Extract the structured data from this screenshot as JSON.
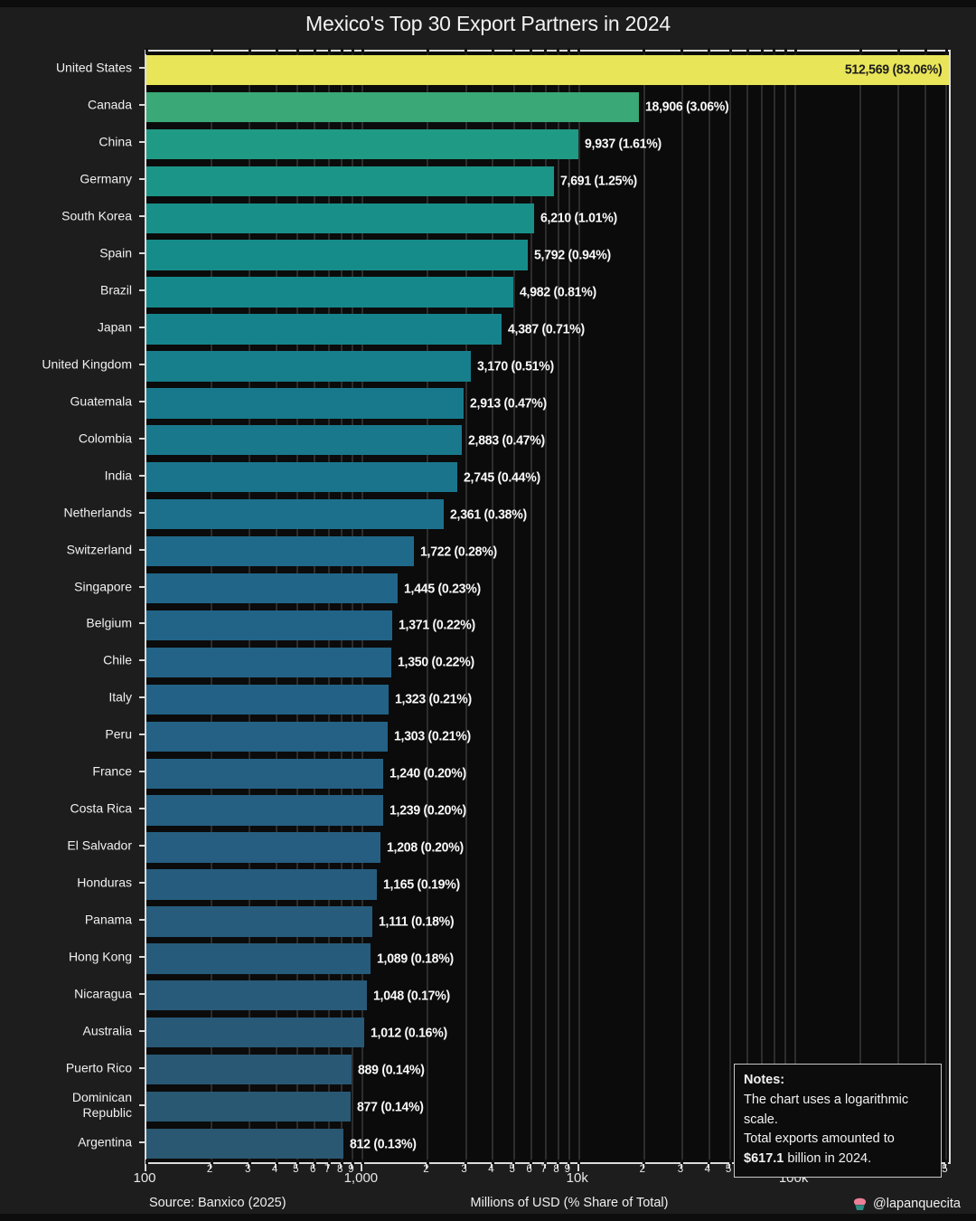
{
  "title": "Mexico's Top 30 Export Partners in 2024",
  "footer": {
    "source": "Source: Banxico (2025)",
    "xlabel": "Millions of USD (% Share of Total)",
    "watermark": "@lapanquecita"
  },
  "notes": {
    "heading": "Notes:",
    "line1": "The chart uses a logarithmic scale.",
    "line2": "Total exports amounted to",
    "line3_bold": "$617.1",
    "line3_rest": " billion in 2024."
  },
  "colors": {
    "figure_bg": "#1d1d1d",
    "plot_bg": "#0b0b0b",
    "gridline": "#2d2d2d",
    "spine": "#dcdcdc",
    "text": "#f0f0f0",
    "inside_value_text": "#1c1c1c",
    "cupcake_frosting": "#ec7f96",
    "cupcake_cup": "#2f8c84"
  },
  "chart_data": {
    "type": "bar",
    "orientation": "horizontal",
    "title": "Mexico's Top 30 Export Partners in 2024",
    "xlabel": "Millions of USD (% Share of Total)",
    "x_scale": "log",
    "xlim": [
      100,
      512569
    ],
    "grid": "vertical minor gridlines, log decades",
    "legend": "none",
    "categories": [
      "United States",
      "Canada",
      "China",
      "Germany",
      "South Korea",
      "Spain",
      "Brazil",
      "Japan",
      "United Kingdom",
      "Guatemala",
      "Colombia",
      "India",
      "Netherlands",
      "Switzerland",
      "Singapore",
      "Belgium",
      "Chile",
      "Italy",
      "Peru",
      "France",
      "Costa Rica",
      "El Salvador",
      "Honduras",
      "Panama",
      "Hong Kong",
      "Nicaragua",
      "Australia",
      "Puerto Rico",
      "Dominican Republic",
      "Argentina"
    ],
    "category_display": [
      "United States",
      "Canada",
      "China",
      "Germany",
      "South Korea",
      "Spain",
      "Brazil",
      "Japan",
      "United Kingdom",
      "Guatemala",
      "Colombia",
      "India",
      "Netherlands",
      "Switzerland",
      "Singapore",
      "Belgium",
      "Chile",
      "Italy",
      "Peru",
      "France",
      "Costa Rica",
      "El Salvador",
      "Honduras",
      "Panama",
      "Hong Kong",
      "Nicaragua",
      "Australia",
      "Puerto Rico",
      "Dominican\nRepublic",
      "Argentina"
    ],
    "values": [
      512569,
      18906,
      9937,
      7691,
      6210,
      5792,
      4982,
      4387,
      3170,
      2913,
      2883,
      2745,
      2361,
      1722,
      1445,
      1371,
      1350,
      1323,
      1303,
      1240,
      1239,
      1208,
      1165,
      1111,
      1089,
      1048,
      1012,
      889,
      877,
      812
    ],
    "value_labels": [
      "512,569 (83.06%)",
      "18,906 (3.06%)",
      "9,937 (1.61%)",
      "7,691 (1.25%)",
      "6,210 (1.01%)",
      "5,792 (0.94%)",
      "4,982 (0.81%)",
      "4,387 (0.71%)",
      "3,170 (0.51%)",
      "2,913 (0.47%)",
      "2,883 (0.47%)",
      "2,745 (0.44%)",
      "2,361 (0.38%)",
      "1,722 (0.28%)",
      "1,445 (0.23%)",
      "1,371 (0.22%)",
      "1,350 (0.22%)",
      "1,323 (0.21%)",
      "1,303 (0.21%)",
      "1,240 (0.20%)",
      "1,239 (0.20%)",
      "1,208 (0.20%)",
      "1,165 (0.19%)",
      "1,111 (0.18%)",
      "1,089 (0.18%)",
      "1,048 (0.17%)",
      "1,012 (0.16%)",
      "889 (0.14%)",
      "877 (0.14%)",
      "812 (0.13%)"
    ],
    "bar_colors": [
      "#e9e559",
      "#3aa877",
      "#1f9a84",
      "#1b9587",
      "#189089",
      "#168c8a",
      "#15888b",
      "#16838c",
      "#177e8c",
      "#18798c",
      "#19788c",
      "#1a758c",
      "#1c708c",
      "#1f6a8b",
      "#216689",
      "#226488",
      "#236387",
      "#236286",
      "#246185",
      "#256083",
      "#255f82",
      "#265e81",
      "#265d7f",
      "#275c7d",
      "#275b7b",
      "#285a79",
      "#285977",
      "#295875",
      "#295873",
      "#2a5771"
    ],
    "inside_label_index": 0,
    "x_major_ticks": [
      {
        "value": 100,
        "label": "100"
      },
      {
        "value": 1000,
        "label": "1,000"
      },
      {
        "value": 10000,
        "label": "10k"
      },
      {
        "value": 100000,
        "label": "100k"
      }
    ],
    "x_minor_tick_rule": "digits 2-9 within each decade, labeled with the digit"
  }
}
